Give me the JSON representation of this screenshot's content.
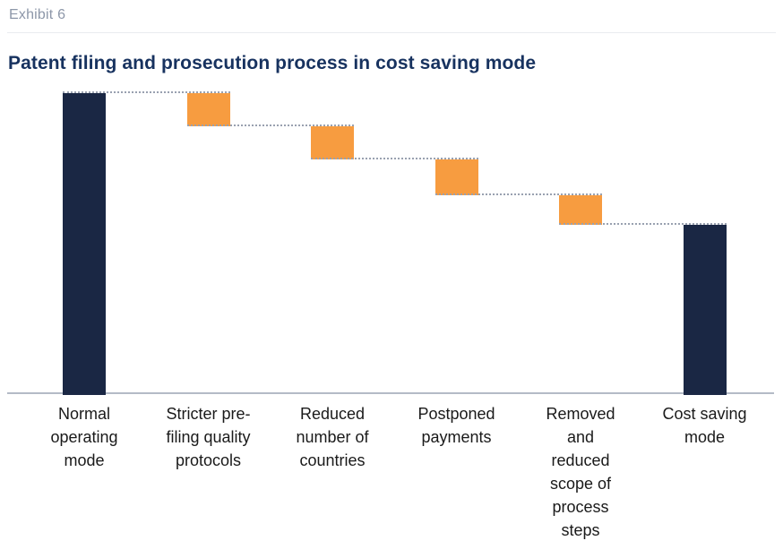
{
  "header": {
    "exhibit_label": "Exhibit 6"
  },
  "title": "Patent filing and prosecution process in cost saving mode",
  "colors": {
    "navy": "#1a2744",
    "orange": "#f79c40",
    "connector": "#99a1b0",
    "axis": "#b4bbc6",
    "title_text": "#17325f",
    "exhibit_text": "#8d97a9",
    "label_text": "#1a1a1a"
  },
  "chart_data": {
    "type": "waterfall",
    "title": "Patent filing and prosecution process in cost saving mode",
    "categories": [
      "Normal operating mode",
      "Stricter pre-filing quality protocols",
      "Reduced number of countries",
      "Postponed payments",
      "Removed and reduced scope of process steps",
      "Cost saving mode"
    ],
    "steps": [
      {
        "label": "Normal\noperating\nmode",
        "kind": "total",
        "value": 100
      },
      {
        "label": "Stricter pre-\nfiling quality\nprotocols",
        "kind": "decrease",
        "value": -11
      },
      {
        "label": "Reduced\nnumber of\ncountries",
        "kind": "decrease",
        "value": -11
      },
      {
        "label": "Postponed\npayments",
        "kind": "decrease",
        "value": -12
      },
      {
        "label": "Removed\nand\nreduced\nscope of\nprocess\nsteps",
        "kind": "decrease",
        "value": -10
      },
      {
        "label": "Cost saving\nmode",
        "kind": "total",
        "value": 56
      }
    ],
    "value_axis": {
      "min": 0,
      "max": 100,
      "labels_visible": false,
      "unit": "percent (implied)"
    },
    "data_labels_visible": false,
    "connector_style": "dotted",
    "legend": "none",
    "gridlines": false
  }
}
